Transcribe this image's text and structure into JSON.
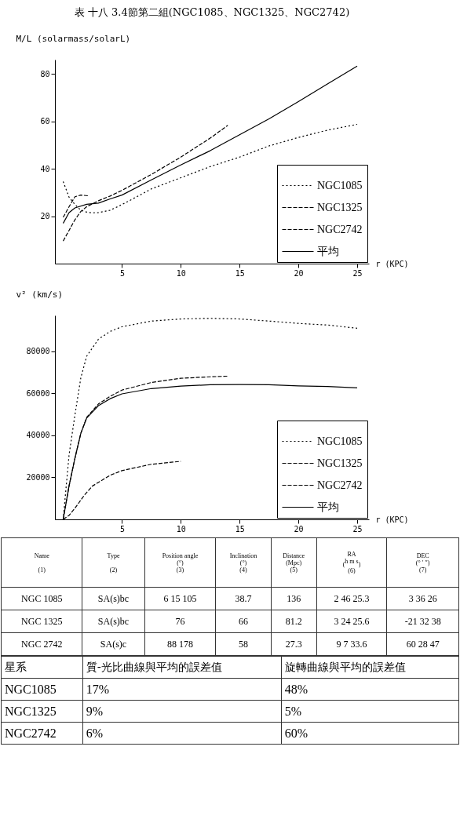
{
  "chart_data": [
    {
      "type": "line",
      "title": "表 十八 3.4節第二組(NGC1085、NGC1325、NGC2742)",
      "xlabel": "r (KPC)",
      "ylabel": "M/L (solarmass/solarL)",
      "xlim": [
        -0.7,
        26
      ],
      "ylim": [
        0,
        86
      ],
      "xticks": [
        5,
        10,
        15,
        20,
        25
      ],
      "yticks": [
        20,
        40,
        60,
        80
      ],
      "legend": "bottom right",
      "grid": false,
      "series": [
        {
          "name": "NGC1085",
          "color": "#000000",
          "line_style": "dotted",
          "x": [
            0,
            0.5,
            1,
            1.5,
            2,
            2.5,
            3,
            4,
            5,
            6,
            7.5,
            10,
            12.5,
            15,
            17.5,
            20,
            22.5,
            25
          ],
          "values": [
            34.6,
            28,
            24.9,
            22.5,
            21.7,
            21.4,
            21.5,
            22.5,
            24.9,
            27.5,
            31.5,
            36.2,
            40.9,
            44.9,
            49.6,
            53.2,
            56.3,
            58.7
          ]
        },
        {
          "name": "NGC1325",
          "color": "#000000",
          "line_style": "dashed",
          "x": [
            0,
            0.5,
            1,
            1.5,
            2,
            3,
            4,
            5,
            7.5,
            10,
            12.5,
            14
          ],
          "values": [
            9.5,
            14,
            18.5,
            22,
            24,
            26.5,
            28.5,
            30.9,
            37.6,
            44.9,
            52.9,
            58.3
          ]
        },
        {
          "name": "NGC2742",
          "color": "#000000",
          "line_style": "dashed",
          "x": [
            0,
            0.5,
            1,
            1.5,
            2.1
          ],
          "values": [
            19.5,
            24,
            28.2,
            28.9,
            28.6
          ]
        },
        {
          "name": "平均",
          "color": "#000000",
          "line_style": "solid",
          "x": [
            0,
            0.5,
            1,
            2,
            3,
            4,
            5,
            7.5,
            10,
            12.5,
            15,
            17.5,
            20,
            22.5,
            25
          ],
          "values": [
            17,
            21.5,
            23.5,
            25,
            25.5,
            27.3,
            28.9,
            35.3,
            41.6,
            47.6,
            54.3,
            61,
            68.3,
            75.8,
            83.3
          ]
        }
      ]
    },
    {
      "type": "line",
      "xlabel": "r (KPC)",
      "ylabel": "v² (km/s)",
      "xlim": [
        -0.7,
        26
      ],
      "ylim": [
        0,
        97000
      ],
      "xticks": [
        5,
        10,
        15,
        20,
        25
      ],
      "yticks": [
        20000,
        40000,
        60000,
        80000
      ],
      "legend": "bottom right",
      "grid": false,
      "series": [
        {
          "name": "NGC1085",
          "color": "#000000",
          "line_style": "dotted",
          "x": [
            0,
            0.5,
            1,
            1.5,
            2,
            3,
            4,
            5,
            7.5,
            10,
            12.5,
            15,
            17.5,
            20,
            22.5,
            25
          ],
          "values": [
            0,
            30600,
            49700,
            67300,
            77600,
            85700,
            89400,
            91600,
            94300,
            95300,
            95600,
            95300,
            94300,
            93200,
            92400,
            90900
          ]
        },
        {
          "name": "NGC1325",
          "color": "#000000",
          "line_style": "dashed",
          "x": [
            0,
            0.5,
            1,
            1.5,
            2,
            3,
            4,
            5,
            7.5,
            10,
            12.5,
            14
          ],
          "values": [
            0,
            15900,
            29100,
            40900,
            48500,
            54900,
            58500,
            61500,
            65100,
            67100,
            67800,
            68100
          ]
        },
        {
          "name": "NGC2742",
          "color": "#000000",
          "line_style": "dashed",
          "x": [
            0,
            0.5,
            1,
            1.8,
            2.5,
            4,
            5,
            7.5,
            10
          ],
          "values": [
            0,
            1900,
            5300,
            11500,
            15900,
            21000,
            23200,
            26200,
            27600
          ]
        },
        {
          "name": "平均",
          "color": "#000000",
          "line_style": "solid",
          "x": [
            0,
            0.5,
            1,
            1.5,
            2,
            3,
            4,
            5,
            7.5,
            10,
            12.5,
            15,
            17.5,
            20,
            22.5,
            25
          ],
          "values": [
            0,
            15900,
            29100,
            40900,
            48200,
            54100,
            57400,
            59700,
            62200,
            63400,
            64000,
            64100,
            64000,
            63500,
            63200,
            62500
          ]
        }
      ]
    },
    {
      "type": "other",
      "categories": [
        "Name\n\n(1)",
        "Type\n\n(2)",
        "Position angle\n(°)\n(3)",
        "Inclination\n(°)\n(4)",
        "Distance\n(Mpc)\n(5)",
        "RA\n($^{h m s}$)\n(6)",
        "DEC\n(° ′ ″)\n(7)"
      ],
      "annotations": [
        "NGC 1085",
        "SA(s)bc",
        "6 15 105",
        "38.7",
        "136",
        "2 46 25.3",
        "3 36 26",
        "NGC 1325",
        "SA(s)bc",
        "76",
        "66",
        "81.2",
        "3 24 25.6",
        "-21 32 38",
        "NGC 2742",
        "SA(s)c",
        "88 178",
        "58",
        "27.3",
        "9 7 33.6",
        "60 28 47"
      ]
    },
    {
      "type": "other",
      "categories": [
        "星系",
        "質-光比曲線與平均的誤差值",
        "旋轉曲線與平均的誤差值"
      ],
      "annotations": [
        "NGC1085",
        "17%",
        "48%",
        "NGC1325",
        "9%",
        "5%",
        "NGC2742",
        "6%",
        "60%"
      ]
    }
  ]
}
